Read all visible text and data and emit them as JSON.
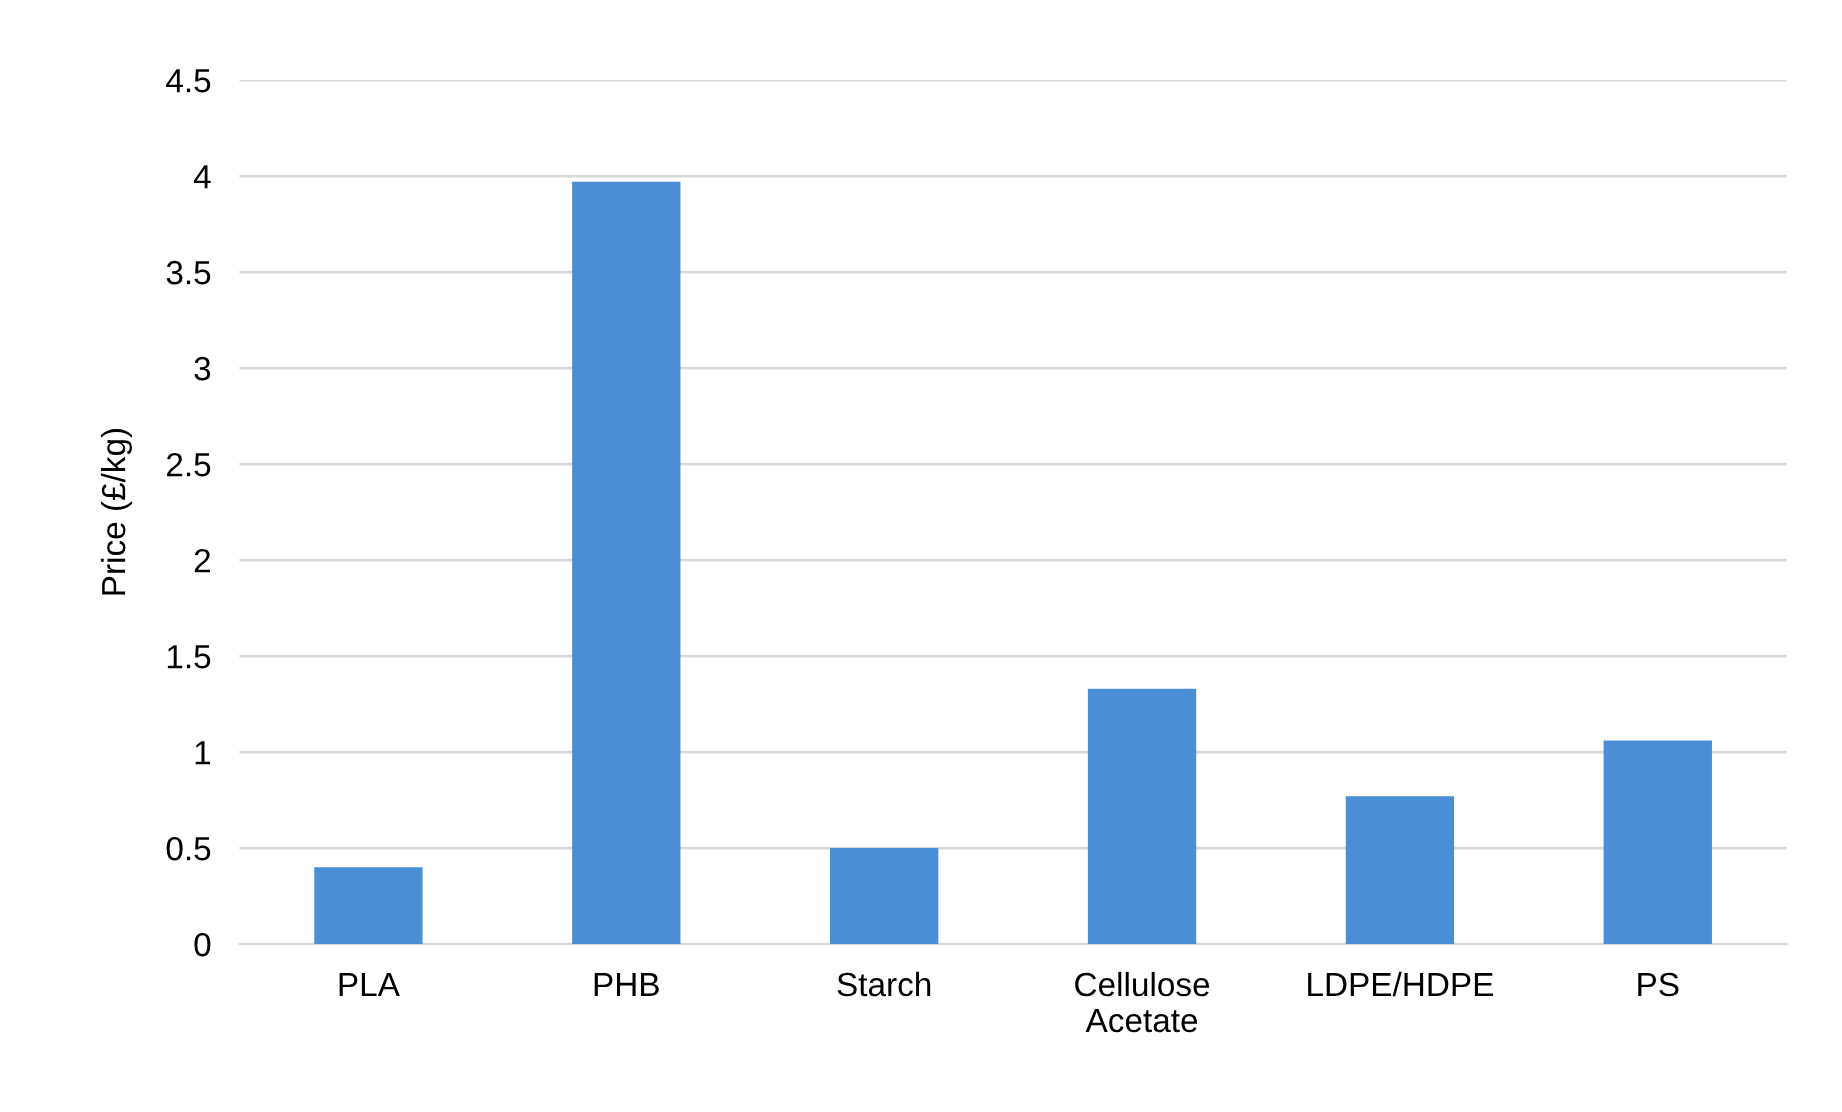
{
  "chart_data": {
    "type": "bar",
    "ylabel": "Price (£/kg)",
    "categories": [
      "PLA",
      "PHB",
      "Starch",
      "Cellulose\nAcetate",
      "LDPE/HDPE",
      "PS"
    ],
    "values": [
      0.4,
      3.97,
      0.5,
      1.33,
      0.77,
      1.06
    ],
    "color": "#4a8fd6",
    "ylim": [
      0,
      4.5
    ],
    "yticks": [
      0,
      0.5,
      1,
      1.5,
      2,
      2.5,
      3,
      3.5,
      4,
      4.5
    ],
    "grid": "y"
  }
}
